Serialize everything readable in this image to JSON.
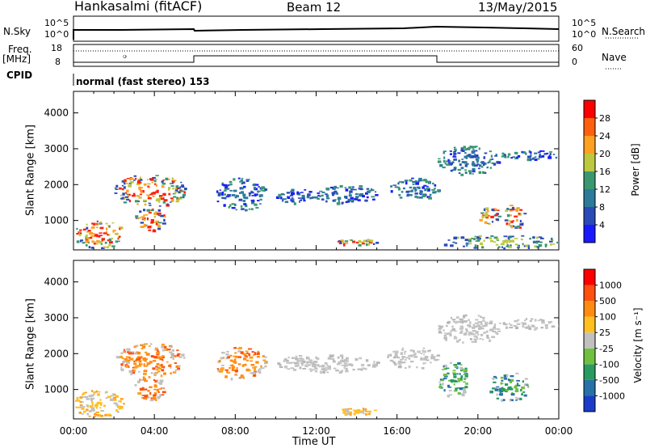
{
  "header": {
    "station": "Hankasalmi (fitACF)",
    "beam": "Beam 12",
    "date": "13/May/2015"
  },
  "strips": {
    "nsky_label": "N.Sky",
    "nsky_ticks": [
      "10^5",
      "10^0"
    ],
    "nsearch_label": "N.Search",
    "nsearch_ticks": [
      "10^5",
      "10^0"
    ],
    "freq_label": "Freq.",
    "freq_unit": "[MHz]",
    "freq_ticks": [
      "18",
      "8"
    ],
    "nave_label": "Nave",
    "nave_ticks": [
      "60",
      "0"
    ],
    "cpid_label": "CPID",
    "cpid_value": "normal (fast stereo) 153"
  },
  "chart_data": [
    {
      "type": "heatmap",
      "name": "power",
      "xlabel": "",
      "ylabel": "Slant Range [km]",
      "xlim": [
        0,
        24
      ],
      "ylim": [
        180,
        4600
      ],
      "yticks": [
        "1000",
        "2000",
        "3000",
        "4000"
      ],
      "colorbar": {
        "label": "Power [dB]",
        "ticks": [
          "4",
          "8",
          "12",
          "16",
          "20",
          "24",
          "28"
        ],
        "colors": [
          "#1a1aff",
          "#2a4ab8",
          "#2e7a9a",
          "#3a9870",
          "#bcc840",
          "#ffa020",
          "#ff6010",
          "#ff0000"
        ]
      },
      "echo_regions": [
        {
          "t": [
            0.0,
            2.5
          ],
          "r": [
            250,
            1000
          ],
          "level": "strong"
        },
        {
          "t": [
            2.0,
            5.5
          ],
          "r": [
            1400,
            2300
          ],
          "level": "strong"
        },
        {
          "t": [
            3.0,
            4.5
          ],
          "r": [
            700,
            1400
          ],
          "level": "strong"
        },
        {
          "t": [
            7.0,
            9.5
          ],
          "r": [
            1300,
            2200
          ],
          "level": "weak"
        },
        {
          "t": [
            10.0,
            12.5
          ],
          "r": [
            1500,
            1900
          ],
          "level": "weak"
        },
        {
          "t": [
            12.0,
            15.0
          ],
          "r": [
            1500,
            2000
          ],
          "level": "weak"
        },
        {
          "t": [
            13.0,
            15.0
          ],
          "r": [
            330,
            500
          ],
          "level": "strong"
        },
        {
          "t": [
            15.5,
            18.0
          ],
          "r": [
            1600,
            2200
          ],
          "level": "weak"
        },
        {
          "t": [
            18.0,
            21.0
          ],
          "r": [
            2300,
            3100
          ],
          "level": "weak"
        },
        {
          "t": [
            20.0,
            21.0
          ],
          "r": [
            900,
            1400
          ],
          "level": "strong"
        },
        {
          "t": [
            21.3,
            22.3
          ],
          "r": [
            800,
            1500
          ],
          "level": "strong"
        },
        {
          "t": [
            18.0,
            24.0
          ],
          "r": [
            250,
            600
          ],
          "level": "medium"
        },
        {
          "t": [
            21.0,
            24.0
          ],
          "r": [
            2700,
            3000
          ],
          "level": "weak"
        }
      ]
    },
    {
      "type": "heatmap",
      "name": "velocity",
      "xlabel": "Time UT",
      "ylabel": "Slant Range [km]",
      "xlim": [
        0,
        24
      ],
      "ylim": [
        180,
        4600
      ],
      "xticks": [
        "00:00",
        "04:00",
        "08:00",
        "12:00",
        "16:00",
        "20:00",
        "00:00"
      ],
      "yticks": [
        "1000",
        "2000",
        "3000",
        "4000"
      ],
      "colorbar": {
        "label": "Velocity [m s⁻¹]",
        "ticks": [
          "1000",
          "500",
          "100",
          "25",
          "-25",
          "-100",
          "-500",
          "-1000"
        ],
        "colors": [
          "#1a3cc8",
          "#2870a8",
          "#2a9a60",
          "#70c040",
          "#c0c0c0",
          "#ffc020",
          "#ff8c10",
          "#ff5010",
          "#ff0000"
        ]
      },
      "echo_regions": [
        {
          "t": [
            0.0,
            2.5
          ],
          "r": [
            250,
            1000
          ],
          "level": "slow-away"
        },
        {
          "t": [
            2.0,
            5.5
          ],
          "r": [
            1400,
            2300
          ],
          "level": "fast-away"
        },
        {
          "t": [
            3.0,
            4.5
          ],
          "r": [
            700,
            1400
          ],
          "level": "fast-away"
        },
        {
          "t": [
            7.0,
            9.5
          ],
          "r": [
            1300,
            2200
          ],
          "level": "fast-away"
        },
        {
          "t": [
            10.0,
            15.0
          ],
          "r": [
            1500,
            2000
          ],
          "level": "slow"
        },
        {
          "t": [
            13.0,
            15.0
          ],
          "r": [
            330,
            500
          ],
          "level": "slow-away"
        },
        {
          "t": [
            15.5,
            18.0
          ],
          "r": [
            1600,
            2200
          ],
          "level": "slow"
        },
        {
          "t": [
            18.0,
            21.0
          ],
          "r": [
            2300,
            3100
          ],
          "level": "slow"
        },
        {
          "t": [
            18.0,
            19.5
          ],
          "r": [
            800,
            1800
          ],
          "level": "toward"
        },
        {
          "t": [
            20.5,
            22.5
          ],
          "r": [
            700,
            1500
          ],
          "level": "toward"
        },
        {
          "t": [
            21.0,
            24.0
          ],
          "r": [
            2700,
            3000
          ],
          "level": "slow"
        }
      ]
    }
  ]
}
